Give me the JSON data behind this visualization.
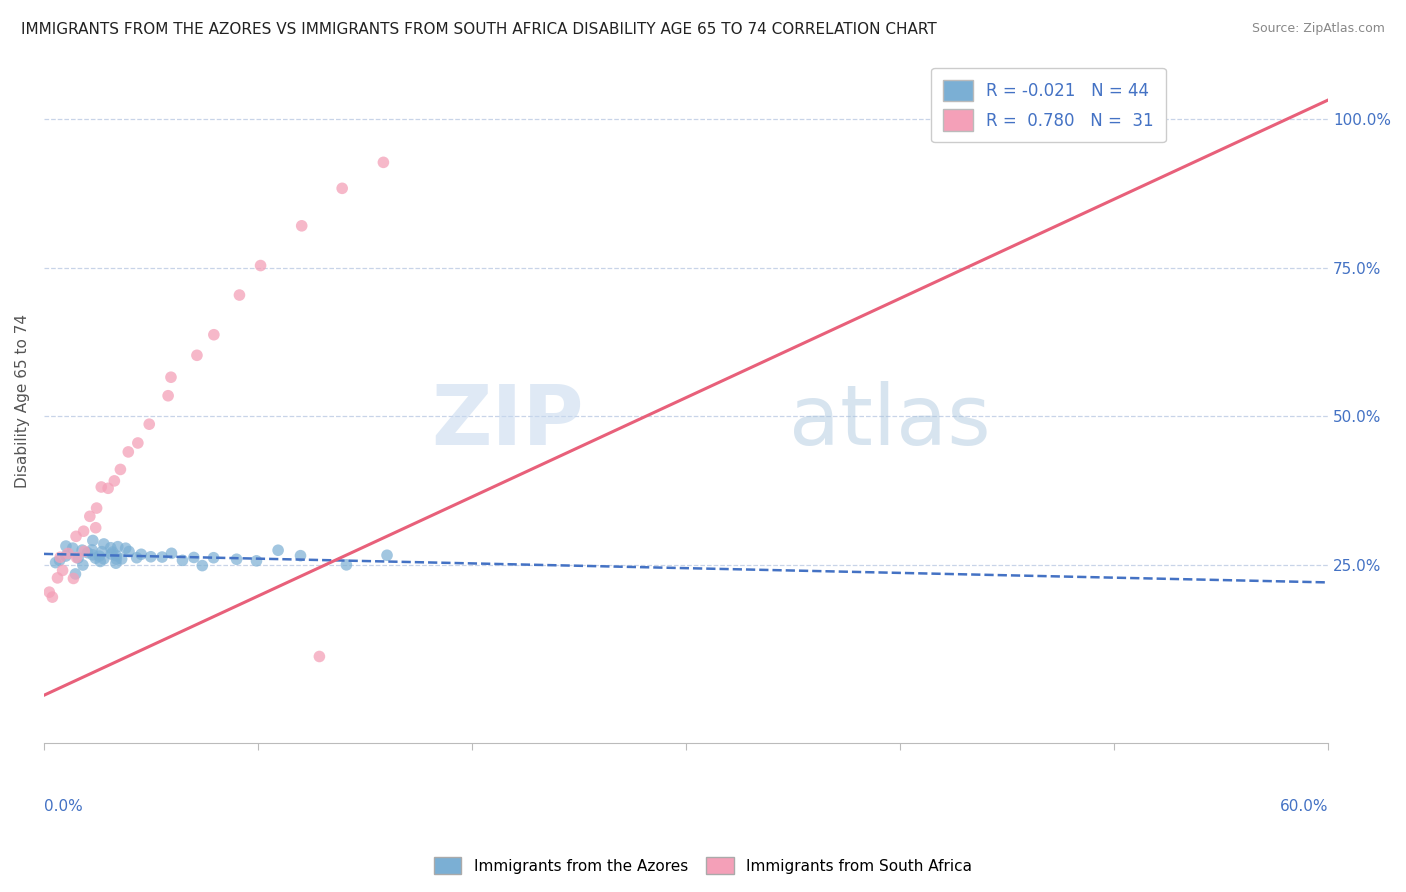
{
  "title": "IMMIGRANTS FROM THE AZORES VS IMMIGRANTS FROM SOUTH AFRICA DISABILITY AGE 65 TO 74 CORRELATION CHART",
  "source": "Source: ZipAtlas.com",
  "ylabel": "Disability Age 65 to 74",
  "right_yticks": [
    "100.0%",
    "75.0%",
    "50.0%",
    "25.0%"
  ],
  "right_ytick_vals": [
    1.0,
    0.75,
    0.5,
    0.25
  ],
  "azores_color": "#7bafd4",
  "sa_color": "#f4a0b8",
  "azores_line_color": "#4472c4",
  "sa_line_color": "#e8607a",
  "azores_R": -0.021,
  "azores_N": 44,
  "sa_R": 0.78,
  "sa_N": 31,
  "xlim": [
    0.0,
    0.6
  ],
  "ylim": [
    -0.05,
    1.1
  ],
  "background_color": "#ffffff",
  "grid_color": "#c8d4e8",
  "azores_x": [
    0.005,
    0.008,
    0.01,
    0.012,
    0.014,
    0.015,
    0.016,
    0.018,
    0.019,
    0.02,
    0.021,
    0.022,
    0.023,
    0.024,
    0.025,
    0.026,
    0.027,
    0.028,
    0.029,
    0.03,
    0.031,
    0.032,
    0.033,
    0.034,
    0.035,
    0.036,
    0.038,
    0.04,
    0.042,
    0.044,
    0.046,
    0.05,
    0.055,
    0.06,
    0.065,
    0.07,
    0.075,
    0.08,
    0.09,
    0.1,
    0.11,
    0.12,
    0.14,
    0.16
  ],
  "azores_y": [
    0.255,
    0.26,
    0.265,
    0.27,
    0.25,
    0.275,
    0.26,
    0.27,
    0.255,
    0.28,
    0.265,
    0.275,
    0.26,
    0.27,
    0.255,
    0.265,
    0.28,
    0.27,
    0.26,
    0.275,
    0.265,
    0.27,
    0.26,
    0.275,
    0.265,
    0.27,
    0.26,
    0.275,
    0.265,
    0.27,
    0.26,
    0.255,
    0.265,
    0.27,
    0.26,
    0.265,
    0.255,
    0.27,
    0.26,
    0.255,
    0.265,
    0.27,
    0.26,
    0.265
  ],
  "sa_x": [
    0.003,
    0.006,
    0.008,
    0.01,
    0.012,
    0.013,
    0.015,
    0.016,
    0.018,
    0.02,
    0.022,
    0.024,
    0.026,
    0.028,
    0.03,
    0.033,
    0.036,
    0.04,
    0.045,
    0.05,
    0.055,
    0.06,
    0.07,
    0.08,
    0.09,
    0.1,
    0.12,
    0.14,
    0.16,
    0.003,
    0.13
  ],
  "sa_y": [
    0.21,
    0.22,
    0.255,
    0.24,
    0.27,
    0.23,
    0.26,
    0.3,
    0.28,
    0.31,
    0.33,
    0.32,
    0.35,
    0.38,
    0.37,
    0.39,
    0.41,
    0.43,
    0.46,
    0.49,
    0.53,
    0.56,
    0.6,
    0.65,
    0.7,
    0.75,
    0.82,
    0.88,
    0.92,
    0.195,
    0.1
  ]
}
